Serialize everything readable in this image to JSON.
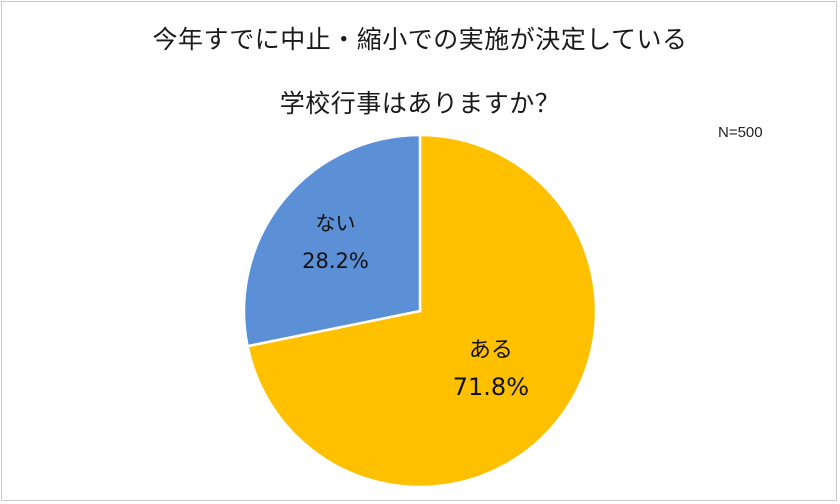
{
  "chart_data": {
    "type": "pie",
    "title_lines": [
      "今年すでに中止・縮小での実施が決定している",
      "学校行事はありますか？"
    ],
    "note": "N=500",
    "slices": [
      {
        "label": "ある",
        "value": 71.8,
        "value_label": "71.8%",
        "color": "#FFC000"
      },
      {
        "label": "ない",
        "value": 28.2,
        "value_label": "28.2%",
        "color": "#5B8FD6"
      }
    ],
    "start_angle_deg": 0,
    "direction": "clockwise"
  }
}
